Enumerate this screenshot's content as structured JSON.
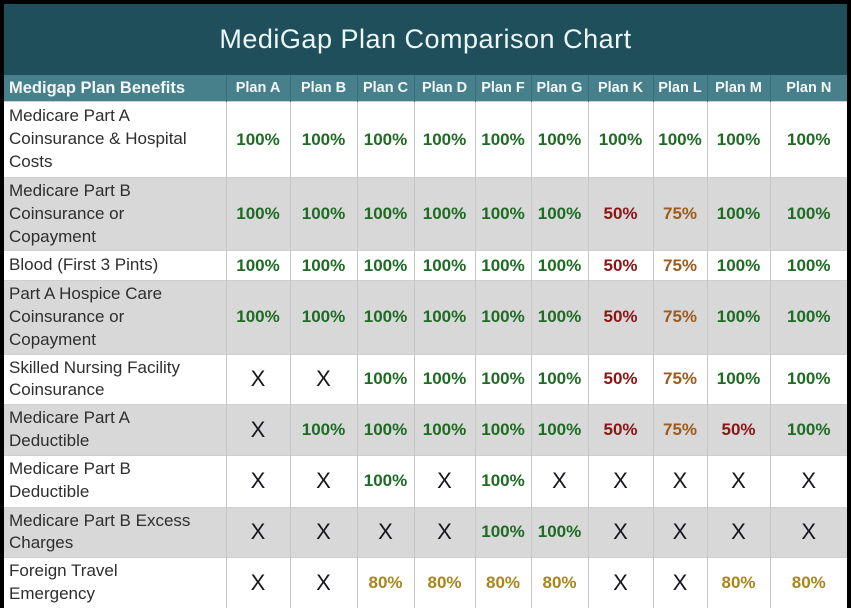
{
  "chart_data": {
    "type": "table",
    "title": "MediGap Plan Comparison Chart",
    "row_header_label": "Medigap Plan Benefits",
    "columns": [
      "Plan A",
      "Plan B",
      "Plan C",
      "Plan D",
      "Plan F",
      "Plan G",
      "Plan K",
      "Plan L",
      "Plan M",
      "Plan N"
    ],
    "rows": [
      {
        "benefit": "Medicare Part A Coinsurance & Hospital Costs",
        "values": [
          "100%",
          "100%",
          "100%",
          "100%",
          "100%",
          "100%",
          "100%",
          "100%",
          "100%",
          "100%"
        ]
      },
      {
        "benefit": "Medicare Part B Coinsurance or Copayment",
        "values": [
          "100%",
          "100%",
          "100%",
          "100%",
          "100%",
          "100%",
          "50%",
          "75%",
          "100%",
          "100%"
        ]
      },
      {
        "benefit": "Blood (First 3 Pints)",
        "values": [
          "100%",
          "100%",
          "100%",
          "100%",
          "100%",
          "100%",
          "50%",
          "75%",
          "100%",
          "100%"
        ]
      },
      {
        "benefit": "Part A Hospice Care Coinsurance or Copayment",
        "values": [
          "100%",
          "100%",
          "100%",
          "100%",
          "100%",
          "100%",
          "50%",
          "75%",
          "100%",
          "100%"
        ]
      },
      {
        "benefit": "Skilled Nursing Facility Coinsurance",
        "values": [
          "X",
          "X",
          "100%",
          "100%",
          "100%",
          "100%",
          "50%",
          "75%",
          "100%",
          "100%"
        ]
      },
      {
        "benefit": "Medicare Part A Deductible",
        "values": [
          "X",
          "100%",
          "100%",
          "100%",
          "100%",
          "100%",
          "50%",
          "75%",
          "50%",
          "100%"
        ]
      },
      {
        "benefit": "Medicare Part B Deductible",
        "values": [
          "X",
          "X",
          "100%",
          "X",
          "100%",
          "X",
          "X",
          "X",
          "X",
          "X"
        ]
      },
      {
        "benefit": "Medicare Part B Excess Charges",
        "values": [
          "X",
          "X",
          "X",
          "X",
          "100%",
          "100%",
          "X",
          "X",
          "X",
          "X"
        ]
      },
      {
        "benefit": "Foreign Travel Emergency",
        "values": [
          "X",
          "X",
          "80%",
          "80%",
          "80%",
          "80%",
          "X",
          "X",
          "80%",
          "80%"
        ]
      }
    ]
  },
  "colors": {
    "title_bg": "#1f4f5a",
    "header_bg": "#47808a",
    "alt_row_bg": "#d8d8d8",
    "value_colors": {
      "100%": "#1e6b24",
      "50%": "#8b1515",
      "75%": "#9d5c1c",
      "80%": "#aa851b",
      "X": "#16161e"
    }
  }
}
